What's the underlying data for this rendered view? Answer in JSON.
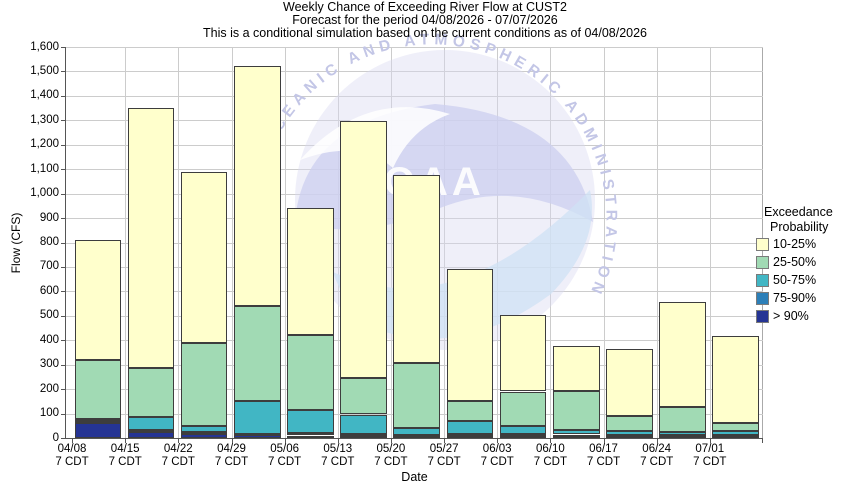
{
  "titles": {
    "line1": "Weekly Chance of Exceeding River Flow at CUST2",
    "line2": "Forecast for the period 04/08/2026 - 07/07/2026",
    "line3": "This is a conditional simulation based on the current conditions as of 04/08/2026"
  },
  "axes": {
    "ylabel": "Flow (CFS)",
    "xlabel": "Date"
  },
  "legend": {
    "title_line1": "Exceedance",
    "title_line2": "Probability",
    "items": [
      {
        "label": "10-25%",
        "color": "#FFFFCC"
      },
      {
        "label": "25-50%",
        "color": "#A1DAB4"
      },
      {
        "label": "50-75%",
        "color": "#41B6C4"
      },
      {
        "label": "75-90%",
        "color": "#2C7FB8"
      },
      {
        "label": "> 90%",
        "color": "#253494"
      }
    ]
  },
  "watermark": {
    "arc_text": "OCEANIC AND ATMOSPHERIC ADMINISTRATION",
    "logo_text": "NOAA"
  },
  "chart_data": {
    "type": "bar",
    "stacked": true,
    "title": "Weekly Chance of Exceeding River Flow at CUST2",
    "subtitle": "Forecast for the period 04/08/2026 - 07/07/2026",
    "note": "This is a conditional simulation based on the current conditions as of 04/08/2026",
    "xlabel": "Date",
    "ylabel": "Flow (CFS)",
    "ylim": [
      0,
      1600
    ],
    "ytick_step": 100,
    "grid": true,
    "legend_position": "right",
    "categories": [
      "04/08",
      "04/15",
      "04/22",
      "04/29",
      "05/06",
      "05/13",
      "05/20",
      "05/27",
      "06/03",
      "06/10",
      "06/17",
      "06/24",
      "07/01"
    ],
    "x_tick_sublabel": "7 CDT",
    "values_are": "cumulative band tops in CFS, stacked bottom-up",
    "series": [
      {
        "name": "> 90%",
        "color": "#253494",
        "cumulative_top_cfs": [
          62,
          25,
          18,
          12,
          10,
          9,
          8,
          8,
          8,
          8,
          7,
          6,
          6
        ]
      },
      {
        "name": "75-90%",
        "color": "#2C7FB8",
        "cumulative_top_cfs": [
          68,
          31,
          23,
          18,
          20,
          17,
          14,
          16,
          16,
          14,
          13,
          11,
          12
        ]
      },
      {
        "name": "50-75%",
        "color": "#41B6C4",
        "cumulative_top_cfs": [
          76,
          85,
          48,
          152,
          116,
          96,
          40,
          68,
          48,
          33,
          29,
          24,
          28
        ]
      },
      {
        "name": "25-50%",
        "color": "#A1DAB4",
        "cumulative_top_cfs": [
          318,
          288,
          388,
          540,
          420,
          245,
          308,
          150,
          190,
          193,
          90,
          128,
          62
        ]
      },
      {
        "name": "10-25%",
        "color": "#FFFFCC",
        "cumulative_top_cfs": [
          812,
          1352,
          1088,
          1522,
          942,
          1298,
          1078,
          693,
          502,
          378,
          366,
          558,
          418
        ]
      }
    ]
  }
}
